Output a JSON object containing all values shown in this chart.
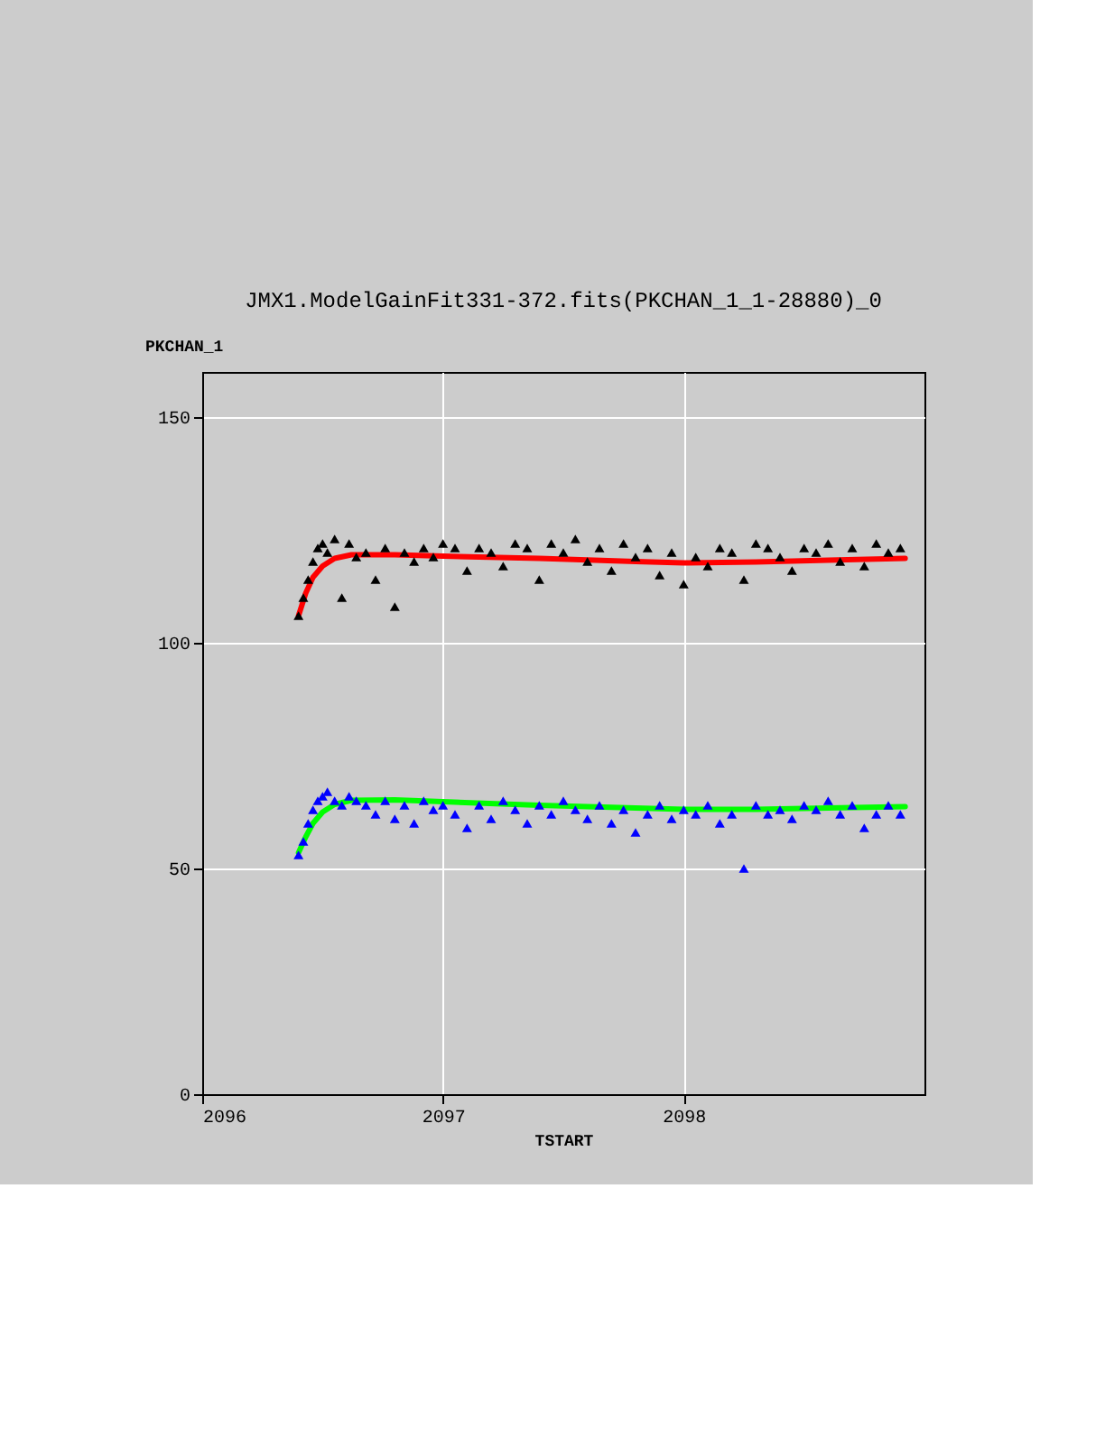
{
  "chart_data": {
    "type": "scatter",
    "title": "JMX1.ModelGainFit331-372.fits(PKCHAN_1_1-28880)_0",
    "xlabel": "TSTART",
    "ylabel": "PKCHAN_1",
    "x": [
      2096.4,
      2096.42,
      2096.44,
      2096.46,
      2096.48,
      2096.5,
      2096.52,
      2096.55,
      2096.58,
      2096.61,
      2096.64,
      2096.68,
      2096.72,
      2096.76,
      2096.8,
      2096.84,
      2096.88,
      2096.92,
      2096.96,
      2097.0,
      2097.05,
      2097.1,
      2097.15,
      2097.2,
      2097.25,
      2097.3,
      2097.35,
      2097.4,
      2097.45,
      2097.5,
      2097.55,
      2097.6,
      2097.65,
      2097.7,
      2097.75,
      2097.8,
      2097.85,
      2097.9,
      2097.95,
      2098.0,
      2098.05,
      2098.1,
      2098.15,
      2098.2,
      2098.25,
      2098.3,
      2098.35,
      2098.4,
      2098.45,
      2098.5,
      2098.55,
      2098.6,
      2098.65,
      2098.7,
      2098.75,
      2098.8,
      2098.85,
      2098.9
    ],
    "series": [
      {
        "marker": "triangle",
        "color": "#000000",
        "values": [
          106,
          110,
          114,
          118,
          121,
          122,
          120,
          123,
          110,
          122,
          119,
          120,
          114,
          121,
          108,
          120,
          118,
          121,
          119,
          122,
          121,
          116,
          121,
          120,
          117,
          122,
          121,
          114,
          122,
          120,
          123,
          118,
          121,
          116,
          122,
          119,
          121,
          115,
          120,
          113,
          119,
          117,
          121,
          120,
          114,
          122,
          121,
          119,
          116,
          121,
          120,
          122,
          118,
          121,
          117,
          122,
          120,
          121
        ]
      },
      {
        "marker": "triangle",
        "color": "#0000ff",
        "values": [
          53,
          56,
          60,
          63,
          65,
          66,
          67,
          65,
          64,
          66,
          65,
          64,
          62,
          65,
          61,
          64,
          60,
          65,
          63,
          64,
          62,
          59,
          64,
          61,
          65,
          63,
          60,
          64,
          62,
          65,
          63,
          61,
          64,
          60,
          63,
          58,
          62,
          64,
          61,
          63,
          62,
          64,
          60,
          62,
          50,
          64,
          62,
          63,
          61,
          64,
          63,
          65,
          62,
          64,
          59,
          62,
          64,
          62
        ]
      },
      {
        "type": "line",
        "line_style": "solid",
        "color": "#ff0000",
        "x": [
          2096.4,
          2096.43,
          2096.46,
          2096.5,
          2096.55,
          2096.62,
          2096.8,
          2097.0,
          2097.4,
          2097.8,
          2098.0,
          2098.3,
          2098.6,
          2098.92
        ],
        "values": [
          106,
          111,
          114.5,
          117,
          118.7,
          119.5,
          119.5,
          119.2,
          118.7,
          118,
          117.7,
          117.9,
          118.3,
          118.7
        ]
      },
      {
        "type": "line",
        "line_style": "solid",
        "color": "#00ff00",
        "x": [
          2096.4,
          2096.43,
          2096.46,
          2096.5,
          2096.55,
          2096.62,
          2096.8,
          2097.0,
          2097.4,
          2097.8,
          2098.0,
          2098.3,
          2098.6,
          2098.92
        ],
        "values": [
          53.5,
          57,
          60,
          62.5,
          64.2,
          65.1,
          65.2,
          64.8,
          64,
          63.4,
          63.1,
          63.1,
          63.4,
          63.7
        ]
      }
    ],
    "xlim": [
      2096,
      2099
    ],
    "xticks": [
      2096,
      2097,
      2098
    ],
    "ylim": [
      0,
      160
    ],
    "yticks": [
      0,
      50,
      100,
      150
    ],
    "grid": true
  }
}
